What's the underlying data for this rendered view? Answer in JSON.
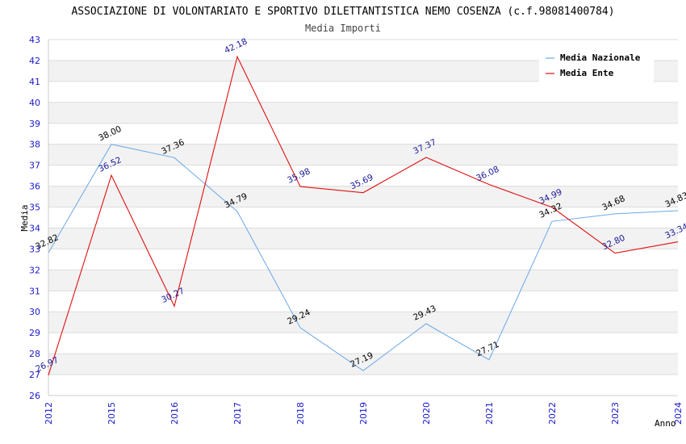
{
  "chart_data": {
    "type": "line",
    "title": "ASSOCIAZIONE DI VOLONTARIATO E SPORTIVO DILETTANTISTICA NEMO COSENZA (c.f.98081400784)",
    "subtitle": "Media Importi",
    "xlabel": "Anno",
    "ylabel": "Media",
    "categories": [
      "2012",
      "2015",
      "2016",
      "2017",
      "2018",
      "2019",
      "2020",
      "2021",
      "2022",
      "2023",
      "2024"
    ],
    "ylim": [
      26,
      43
    ],
    "yticks": [
      26,
      27,
      28,
      29,
      30,
      31,
      32,
      33,
      34,
      35,
      36,
      37,
      38,
      39,
      40,
      41,
      42,
      43
    ],
    "grid": true,
    "legend_position": "top-right",
    "series": [
      {
        "name": "Media Nazionale",
        "color": "#6aa8e8",
        "label_color": "#000000",
        "values": [
          32.82,
          38.0,
          37.36,
          34.79,
          29.24,
          27.19,
          29.43,
          27.71,
          34.32,
          34.68,
          34.83
        ],
        "labels": [
          "32.82",
          "38.00",
          "37.36",
          "34.79",
          "29.24",
          "27.19",
          "29.43",
          "27.71",
          "34.32",
          "34.68",
          "34.83"
        ]
      },
      {
        "name": "Media Ente",
        "color": "#e01010",
        "label_color": "#1a1a99",
        "values": [
          26.97,
          36.52,
          30.27,
          42.18,
          35.98,
          35.69,
          37.37,
          36.08,
          34.99,
          32.8,
          33.34
        ],
        "labels": [
          "26.97",
          "36.52",
          "30.27",
          "42.18",
          "35.98",
          "35.69",
          "37.37",
          "36.08",
          "34.99",
          "32.80",
          "33.34"
        ]
      }
    ]
  }
}
